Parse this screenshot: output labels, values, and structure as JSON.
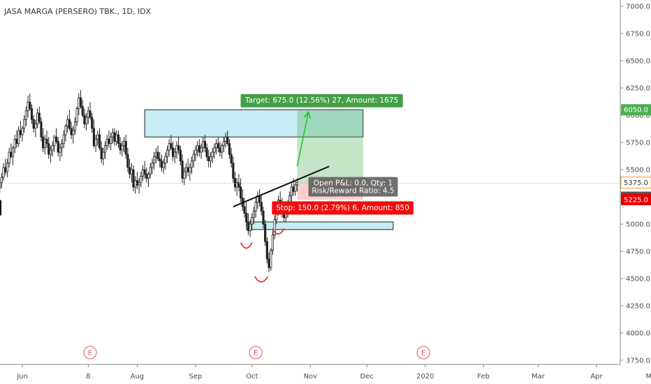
{
  "chart_data": {
    "type": "candlestick",
    "title": "JASA MARGA (PERSERO) TBK., 1D, IDX",
    "y_range": [
      3700,
      7080
    ],
    "y_ticks": [
      "7000.0",
      "6750.0",
      "6500.0",
      "6250.0",
      "6000.0",
      "5750.0",
      "5500.0",
      "5250.0",
      "5000.0",
      "4750.0",
      "4500.0",
      "4250.0",
      "4000.0",
      "3750.0"
    ],
    "x_labels": [
      "Jun",
      "8",
      "Aug",
      "Sep",
      "Oct",
      "Nov",
      "Dec",
      "2020",
      "Feb",
      "Mar",
      "Apr",
      "May"
    ],
    "x_label_days": [
      0,
      35,
      61,
      92,
      122,
      153,
      183,
      214,
      245,
      274,
      305,
      335
    ],
    "price_tags": [
      {
        "value": 6050,
        "label": "6050.0",
        "color": "#4caf50"
      },
      {
        "value": 5375,
        "label": "5375.0",
        "color": "#ffffff"
      },
      {
        "value": 5375,
        "label": "5375.0",
        "color": "#555555"
      },
      {
        "value": 5225,
        "label": "5225.0",
        "color": "#e60000"
      }
    ],
    "close_line": 5375,
    "candles": [
      [
        -12,
        5330,
        5420,
        5280,
        5380
      ],
      [
        -11,
        5380,
        5470,
        5330,
        5430
      ],
      [
        -10,
        5430,
        5560,
        5400,
        5520
      ],
      [
        -9,
        5520,
        5600,
        5450,
        5480
      ],
      [
        -8,
        5480,
        5600,
        5430,
        5560
      ],
      [
        -7,
        5560,
        5700,
        5520,
        5660
      ],
      [
        -6,
        5660,
        5740,
        5600,
        5620
      ],
      [
        -5,
        5620,
        5720,
        5540,
        5700
      ],
      [
        -4,
        5700,
        5820,
        5650,
        5780
      ],
      [
        -3,
        5780,
        5860,
        5700,
        5740
      ],
      [
        -2,
        5740,
        5900,
        5710,
        5860
      ],
      [
        -1,
        5860,
        5950,
        5790,
        5820
      ],
      [
        0,
        5820,
        5900,
        5760,
        5880
      ],
      [
        1,
        5880,
        6000,
        5840,
        5960
      ],
      [
        2,
        5960,
        6080,
        5900,
        6040
      ],
      [
        3,
        6040,
        6180,
        5980,
        6120
      ],
      [
        4,
        6120,
        6200,
        6040,
        6060
      ],
      [
        5,
        6060,
        6100,
        5920,
        5960
      ],
      [
        6,
        5960,
        6000,
        5840,
        5880
      ],
      [
        7,
        5880,
        5960,
        5800,
        5920
      ],
      [
        8,
        5920,
        6060,
        5880,
        6020
      ],
      [
        9,
        6020,
        6080,
        5920,
        5940
      ],
      [
        10,
        5940,
        5980,
        5760,
        5800
      ],
      [
        11,
        5800,
        5880,
        5660,
        5700
      ],
      [
        12,
        5700,
        5820,
        5640,
        5780
      ],
      [
        13,
        5780,
        5860,
        5700,
        5740
      ],
      [
        14,
        5740,
        5800,
        5600,
        5640
      ],
      [
        15,
        5640,
        5720,
        5560,
        5680
      ],
      [
        16,
        5680,
        5760,
        5620,
        5720
      ],
      [
        17,
        5720,
        5820,
        5660,
        5800
      ],
      [
        18,
        5800,
        5880,
        5740,
        5760
      ],
      [
        19,
        5760,
        5800,
        5620,
        5660
      ],
      [
        20,
        5660,
        5740,
        5580,
        5700
      ],
      [
        21,
        5700,
        5780,
        5620,
        5740
      ],
      [
        22,
        5740,
        5860,
        5700,
        5820
      ],
      [
        23,
        5820,
        5920,
        5760,
        5900
      ],
      [
        24,
        5900,
        6000,
        5840,
        5960
      ],
      [
        25,
        5960,
        6050,
        5860,
        5880
      ],
      [
        26,
        5880,
        5940,
        5780,
        5820
      ],
      [
        27,
        5820,
        5900,
        5740,
        5860
      ],
      [
        28,
        5860,
        5980,
        5820,
        5940
      ],
      [
        29,
        5940,
        6080,
        5900,
        6060
      ],
      [
        30,
        6060,
        6200,
        6000,
        6160
      ],
      [
        31,
        6160,
        6230,
        6060,
        6080
      ],
      [
        32,
        6080,
        6140,
        5980,
        6000
      ],
      [
        33,
        6000,
        6060,
        5880,
        5920
      ],
      [
        34,
        5920,
        6020,
        5860,
        5980
      ],
      [
        35,
        5980,
        6080,
        5920,
        6040
      ],
      [
        36,
        6040,
        6120,
        5960,
        5980
      ],
      [
        37,
        5980,
        6020,
        5840,
        5880
      ],
      [
        38,
        5880,
        5960,
        5700,
        5720
      ],
      [
        39,
        5720,
        5820,
        5660,
        5780
      ],
      [
        40,
        5780,
        5860,
        5720,
        5820
      ],
      [
        41,
        5820,
        5880,
        5680,
        5700
      ],
      [
        42,
        5700,
        5760,
        5560,
        5600
      ],
      [
        43,
        5600,
        5700,
        5540,
        5660
      ],
      [
        44,
        5660,
        5760,
        5600,
        5720
      ],
      [
        45,
        5720,
        5820,
        5680,
        5780
      ],
      [
        46,
        5780,
        5860,
        5700,
        5740
      ],
      [
        47,
        5740,
        5840,
        5680,
        5800
      ],
      [
        48,
        5800,
        5880,
        5740,
        5840
      ],
      [
        49,
        5840,
        5880,
        5720,
        5760
      ],
      [
        50,
        5760,
        5860,
        5720,
        5820
      ],
      [
        51,
        5820,
        5860,
        5700,
        5740
      ],
      [
        52,
        5740,
        5800,
        5640,
        5680
      ],
      [
        53,
        5680,
        5760,
        5620,
        5720
      ],
      [
        54,
        5720,
        5800,
        5660,
        5760
      ],
      [
        55,
        5760,
        5820,
        5600,
        5640
      ],
      [
        56,
        5640,
        5700,
        5480,
        5520
      ],
      [
        57,
        5520,
        5600,
        5420,
        5460
      ],
      [
        58,
        5460,
        5560,
        5380,
        5500
      ],
      [
        59,
        5500,
        5540,
        5300,
        5340
      ],
      [
        60,
        5340,
        5440,
        5280,
        5400
      ],
      [
        61,
        5400,
        5480,
        5320,
        5360
      ],
      [
        62,
        5360,
        5420,
        5280,
        5380
      ],
      [
        63,
        5380,
        5480,
        5340,
        5440
      ],
      [
        64,
        5440,
        5540,
        5400,
        5500
      ],
      [
        65,
        5500,
        5580,
        5420,
        5460
      ],
      [
        66,
        5460,
        5520,
        5380,
        5420
      ],
      [
        67,
        5420,
        5480,
        5340,
        5460
      ],
      [
        68,
        5460,
        5560,
        5420,
        5520
      ],
      [
        69,
        5520,
        5600,
        5460,
        5560
      ],
      [
        70,
        5560,
        5660,
        5500,
        5620
      ],
      [
        71,
        5620,
        5700,
        5560,
        5660
      ],
      [
        72,
        5660,
        5720,
        5580,
        5600
      ],
      [
        73,
        5600,
        5660,
        5520,
        5580
      ],
      [
        74,
        5580,
        5640,
        5480,
        5520
      ],
      [
        75,
        5520,
        5600,
        5460,
        5560
      ],
      [
        76,
        5560,
        5660,
        5500,
        5620
      ],
      [
        77,
        5620,
        5720,
        5560,
        5680
      ],
      [
        78,
        5680,
        5780,
        5620,
        5740
      ],
      [
        79,
        5740,
        5820,
        5680,
        5700
      ],
      [
        80,
        5700,
        5760,
        5580,
        5620
      ],
      [
        81,
        5620,
        5700,
        5560,
        5660
      ],
      [
        82,
        5660,
        5760,
        5600,
        5720
      ],
      [
        83,
        5720,
        5800,
        5640,
        5680
      ],
      [
        84,
        5680,
        5720,
        5540,
        5580
      ],
      [
        85,
        5580,
        5640,
        5380,
        5420
      ],
      [
        86,
        5420,
        5520,
        5360,
        5480
      ],
      [
        87,
        5480,
        5560,
        5420,
        5520
      ],
      [
        88,
        5520,
        5600,
        5440,
        5480
      ],
      [
        89,
        5480,
        5560,
        5400,
        5520
      ],
      [
        90,
        5520,
        5620,
        5460,
        5580
      ],
      [
        91,
        5580,
        5680,
        5520,
        5640
      ],
      [
        92,
        5640,
        5720,
        5580,
        5680
      ],
      [
        93,
        5680,
        5760,
        5620,
        5720
      ],
      [
        94,
        5720,
        5780,
        5620,
        5660
      ],
      [
        95,
        5660,
        5740,
        5600,
        5700
      ],
      [
        96,
        5700,
        5800,
        5660,
        5760
      ],
      [
        97,
        5760,
        5820,
        5660,
        5700
      ],
      [
        98,
        5700,
        5740,
        5580,
        5620
      ],
      [
        99,
        5620,
        5680,
        5520,
        5580
      ],
      [
        100,
        5580,
        5660,
        5520,
        5620
      ],
      [
        101,
        5620,
        5700,
        5560,
        5660
      ],
      [
        102,
        5660,
        5740,
        5600,
        5700
      ],
      [
        103,
        5700,
        5780,
        5640,
        5740
      ],
      [
        104,
        5740,
        5800,
        5660,
        5700
      ],
      [
        105,
        5700,
        5760,
        5620,
        5660
      ],
      [
        106,
        5660,
        5740,
        5600,
        5720
      ],
      [
        107,
        5720,
        5800,
        5660,
        5760
      ],
      [
        108,
        5760,
        5840,
        5700,
        5800
      ],
      [
        109,
        5800,
        5860,
        5720,
        5740
      ],
      [
        110,
        5740,
        5780,
        5600,
        5640
      ],
      [
        111,
        5640,
        5700,
        5520,
        5560
      ],
      [
        112,
        5560,
        5620,
        5380,
        5420
      ],
      [
        113,
        5420,
        5480,
        5300,
        5340
      ],
      [
        114,
        5340,
        5420,
        5260,
        5380
      ],
      [
        115,
        5380,
        5460,
        5300,
        5340
      ],
      [
        116,
        5340,
        5420,
        5200,
        5240
      ],
      [
        117,
        5240,
        5320,
        5120,
        5160
      ],
      [
        118,
        5160,
        5240,
        5060,
        5100
      ],
      [
        119,
        5100,
        5200,
        4980,
        5020
      ],
      [
        120,
        5020,
        5100,
        4900,
        4940
      ],
      [
        121,
        4940,
        5040,
        4880,
        5000
      ],
      [
        122,
        5000,
        5100,
        4940,
        5060
      ],
      [
        123,
        5060,
        5160,
        5000,
        5120
      ],
      [
        124,
        5120,
        5240,
        5060,
        5200
      ],
      [
        125,
        5200,
        5300,
        5140,
        5260
      ],
      [
        126,
        5260,
        5320,
        5160,
        5200
      ],
      [
        127,
        5200,
        5260,
        5080,
        5120
      ],
      [
        128,
        5120,
        5160,
        4960,
        5000
      ],
      [
        129,
        5000,
        5040,
        4800,
        4840
      ],
      [
        130,
        4840,
        4880,
        4640,
        4680
      ],
      [
        131,
        4680,
        4740,
        4560,
        4600
      ],
      [
        132,
        4600,
        4780,
        4570,
        4760
      ],
      [
        133,
        4760,
        4940,
        4720,
        4900
      ],
      [
        134,
        4900,
        5080,
        4860,
        5040
      ],
      [
        135,
        5040,
        5180,
        5000,
        5140
      ],
      [
        136,
        5140,
        5260,
        5080,
        5220
      ],
      [
        137,
        5220,
        5300,
        5140,
        5180
      ],
      [
        138,
        5180,
        5240,
        5060,
        5100
      ],
      [
        139,
        5100,
        5160,
        5020,
        5060
      ],
      [
        140,
        5060,
        5160,
        5020,
        5120
      ],
      [
        141,
        5120,
        5220,
        5060,
        5180
      ],
      [
        142,
        5180,
        5300,
        5140,
        5260
      ],
      [
        143,
        5260,
        5380,
        5200,
        5340
      ],
      [
        144,
        5340,
        5420,
        5260,
        5300
      ],
      [
        145,
        5300,
        5400,
        5260,
        5360
      ],
      [
        146,
        5360,
        5420,
        5300,
        5380
      ]
    ],
    "overlays": {
      "resistance_zone": {
        "x0": 65,
        "x1": 181,
        "y0": 5800,
        "y1": 6050,
        "color": "#c8ecf4"
      },
      "support_zone": {
        "x0": 119,
        "x1": 197,
        "y0": 4950,
        "y1": 5020,
        "color": "#c8ecf4"
      },
      "neckline": {
        "x0": 112,
        "y0": 5160,
        "x1": 163,
        "y1": 5530
      },
      "target_arrow": {
        "x0": 146,
        "y0": 5530,
        "x1": 152,
        "y1": 6030,
        "color": "#22cc22"
      },
      "long_position": {
        "x0": 146,
        "x1": 181,
        "entry": 5375,
        "target": 6050,
        "stop": 5225,
        "target_label": "Target: 675.0 (12.56%) 27, Amount: 1675",
        "stop_label": "Stop: 150.0 (2.79%) 6, Amount: 850",
        "pnl_label": "Open P&L: 0.0, Qty: 1",
        "rr_label": "Risk/Reward Ratio: 4.5"
      },
      "smile_marks": [
        {
          "x": 119,
          "y": 4830,
          "w": 6
        },
        {
          "x": 127,
          "y": 4520,
          "w": 7
        },
        {
          "x": 136,
          "y": 4960,
          "w": 6
        }
      ]
    },
    "events": [
      {
        "x": 36,
        "label": "E"
      },
      {
        "x": 124,
        "label": "E"
      },
      {
        "x": 213,
        "label": "E"
      }
    ],
    "grid": false,
    "legend": "none"
  }
}
